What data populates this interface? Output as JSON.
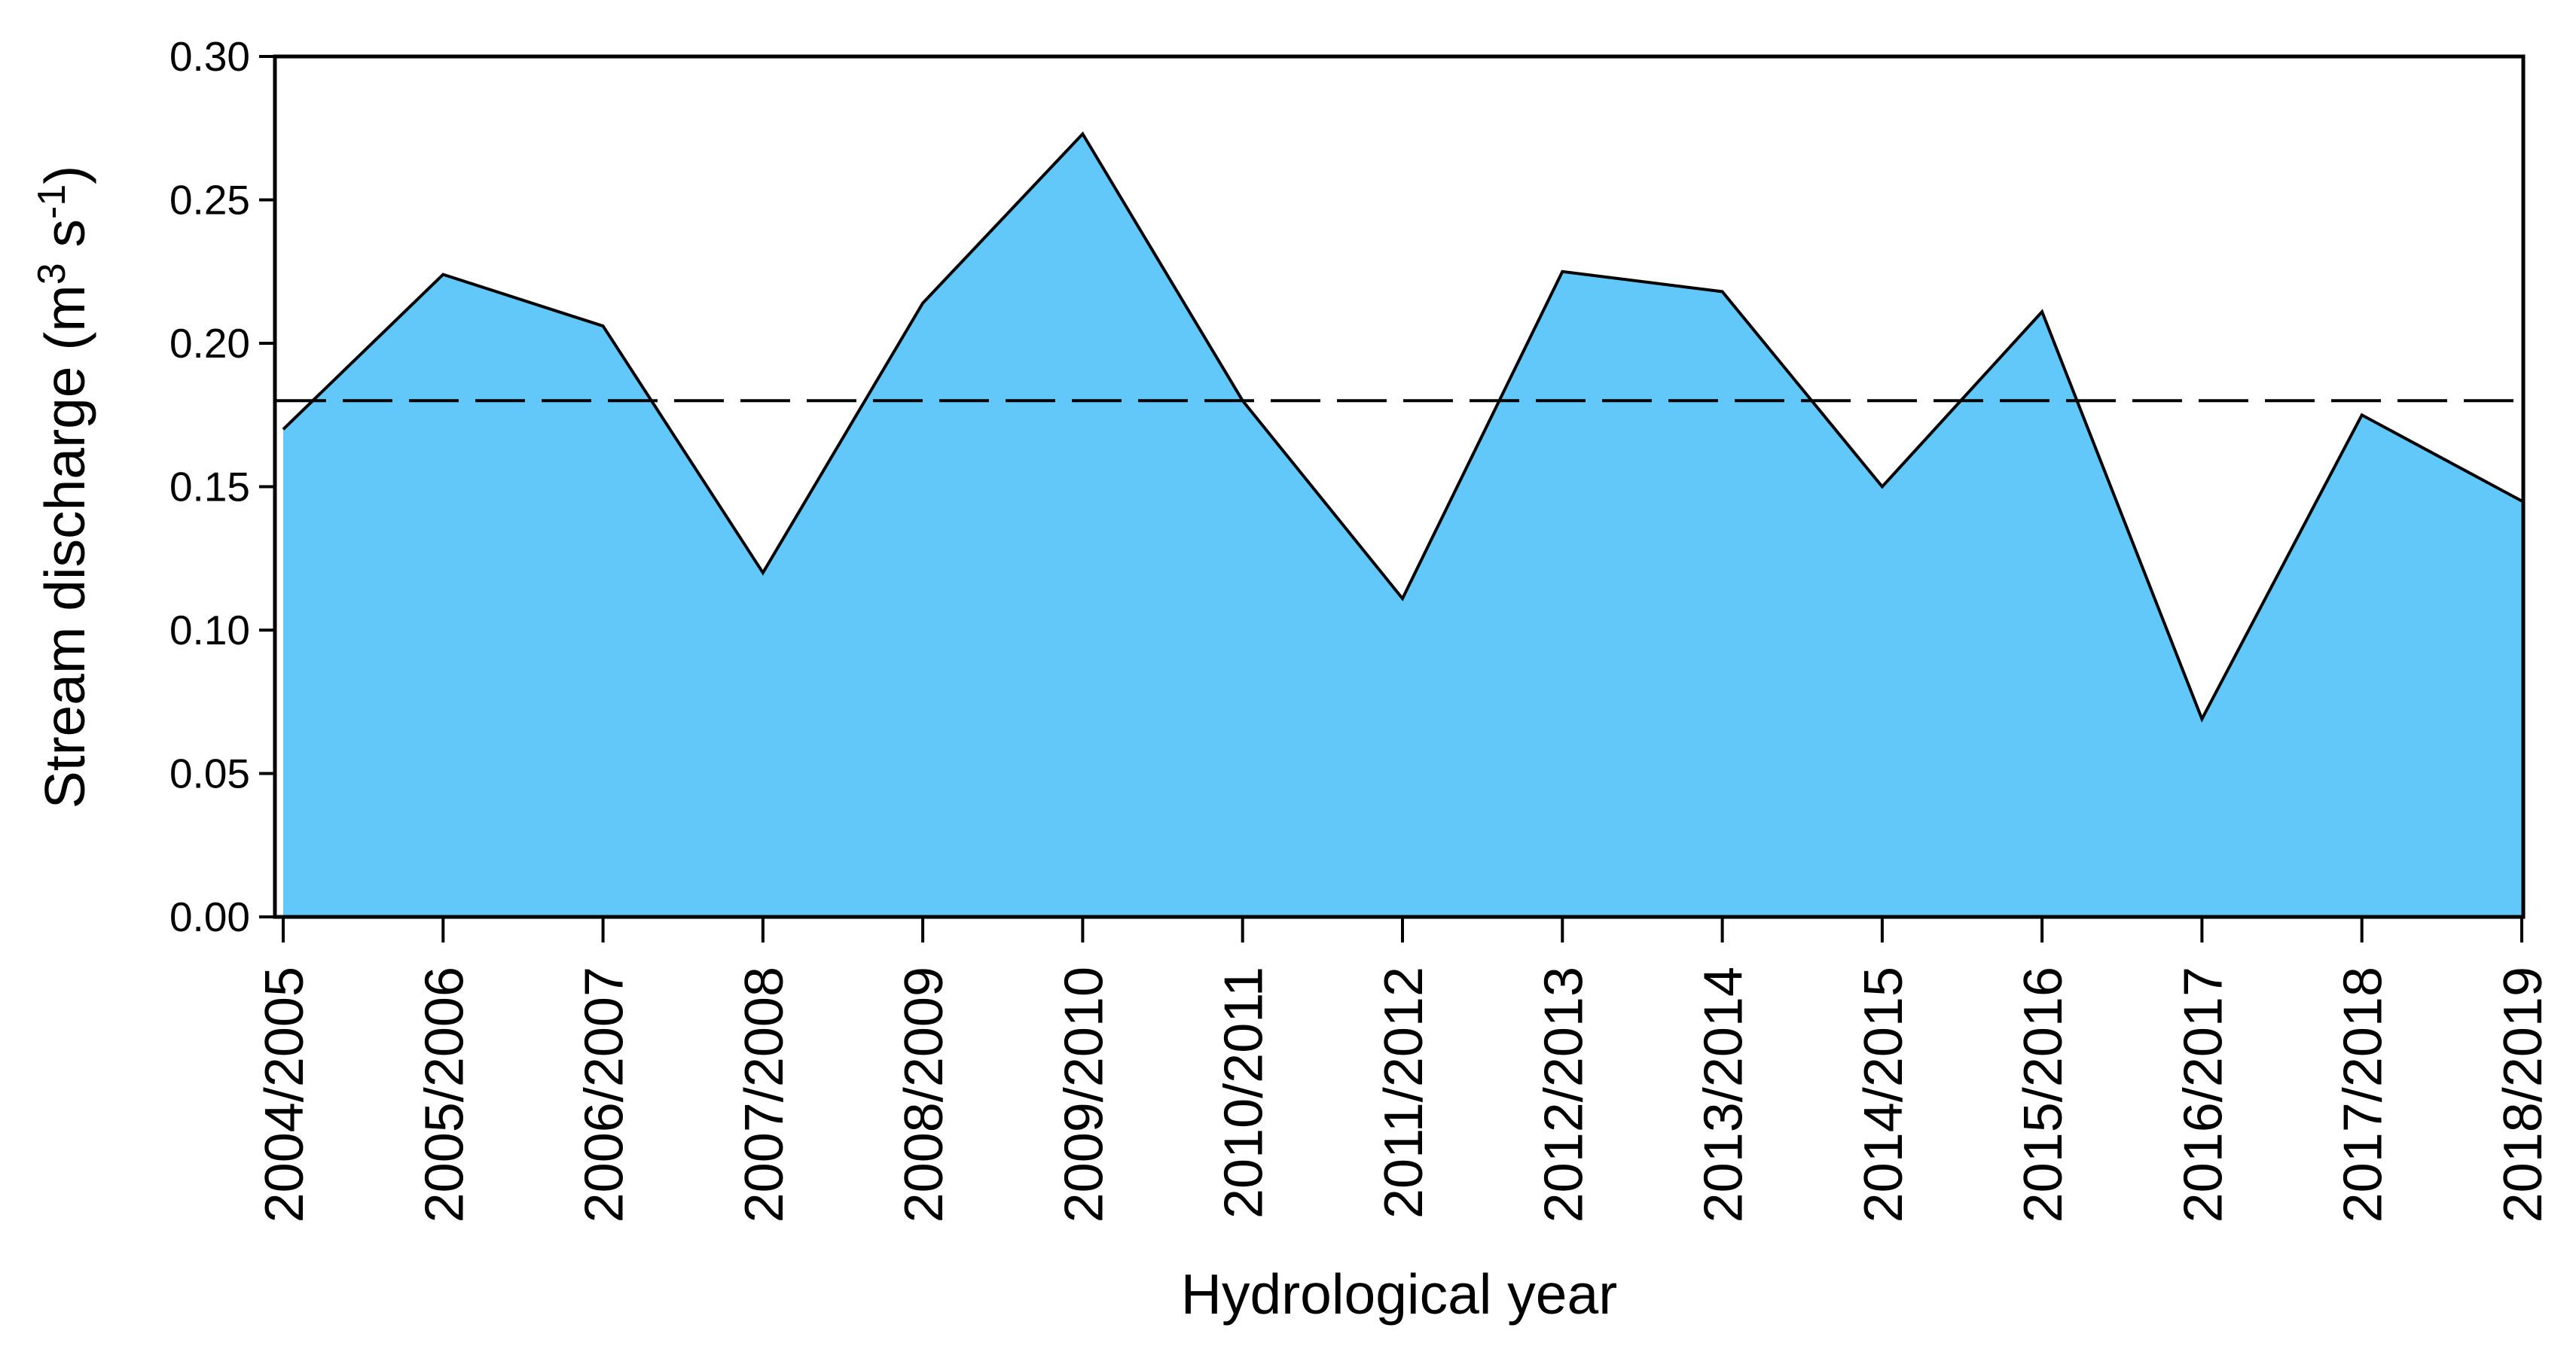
{
  "chart_data": {
    "type": "area",
    "title": "",
    "xlabel": "Hydrological year",
    "ylabel": "Stream discharge (m³ s⁻¹)",
    "ylabel_rich": [
      {
        "t": "Stream discharge (m"
      },
      {
        "t": "3",
        "sup": true
      },
      {
        "t": " s"
      },
      {
        "t": "-1",
        "sup": true
      },
      {
        "t": ")"
      }
    ],
    "categories": [
      "2004/2005",
      "2005/2006",
      "2006/2007",
      "2007/2008",
      "2008/2009",
      "2009/2010",
      "2010/2011",
      "2011/2012",
      "2012/2013",
      "2013/2014",
      "2014/2015",
      "2015/2016",
      "2016/2017",
      "2017/2018",
      "2018/2019"
    ],
    "series": [
      {
        "name": "Stream discharge",
        "values": [
          0.17,
          0.224,
          0.206,
          0.12,
          0.214,
          0.273,
          0.18,
          0.111,
          0.225,
          0.218,
          0.15,
          0.211,
          0.069,
          0.175,
          0.145
        ]
      }
    ],
    "mean_line": {
      "value": 0.18,
      "style": "dashed",
      "color": "#000000"
    },
    "ylim": [
      0,
      0.3
    ],
    "ytick_values": [
      0.0,
      0.05,
      0.1,
      0.15,
      0.2,
      0.25,
      0.3
    ],
    "ytick_labels": [
      "0.00",
      "0.05",
      "0.10",
      "0.15",
      "0.20",
      "0.25",
      "0.30"
    ],
    "grid": false,
    "legend": "none",
    "frame": "box",
    "area_fill_color": "#62C8FA",
    "line_color": "#000000",
    "axis_color": "#000000",
    "background_color": "#FFFFFF"
  }
}
